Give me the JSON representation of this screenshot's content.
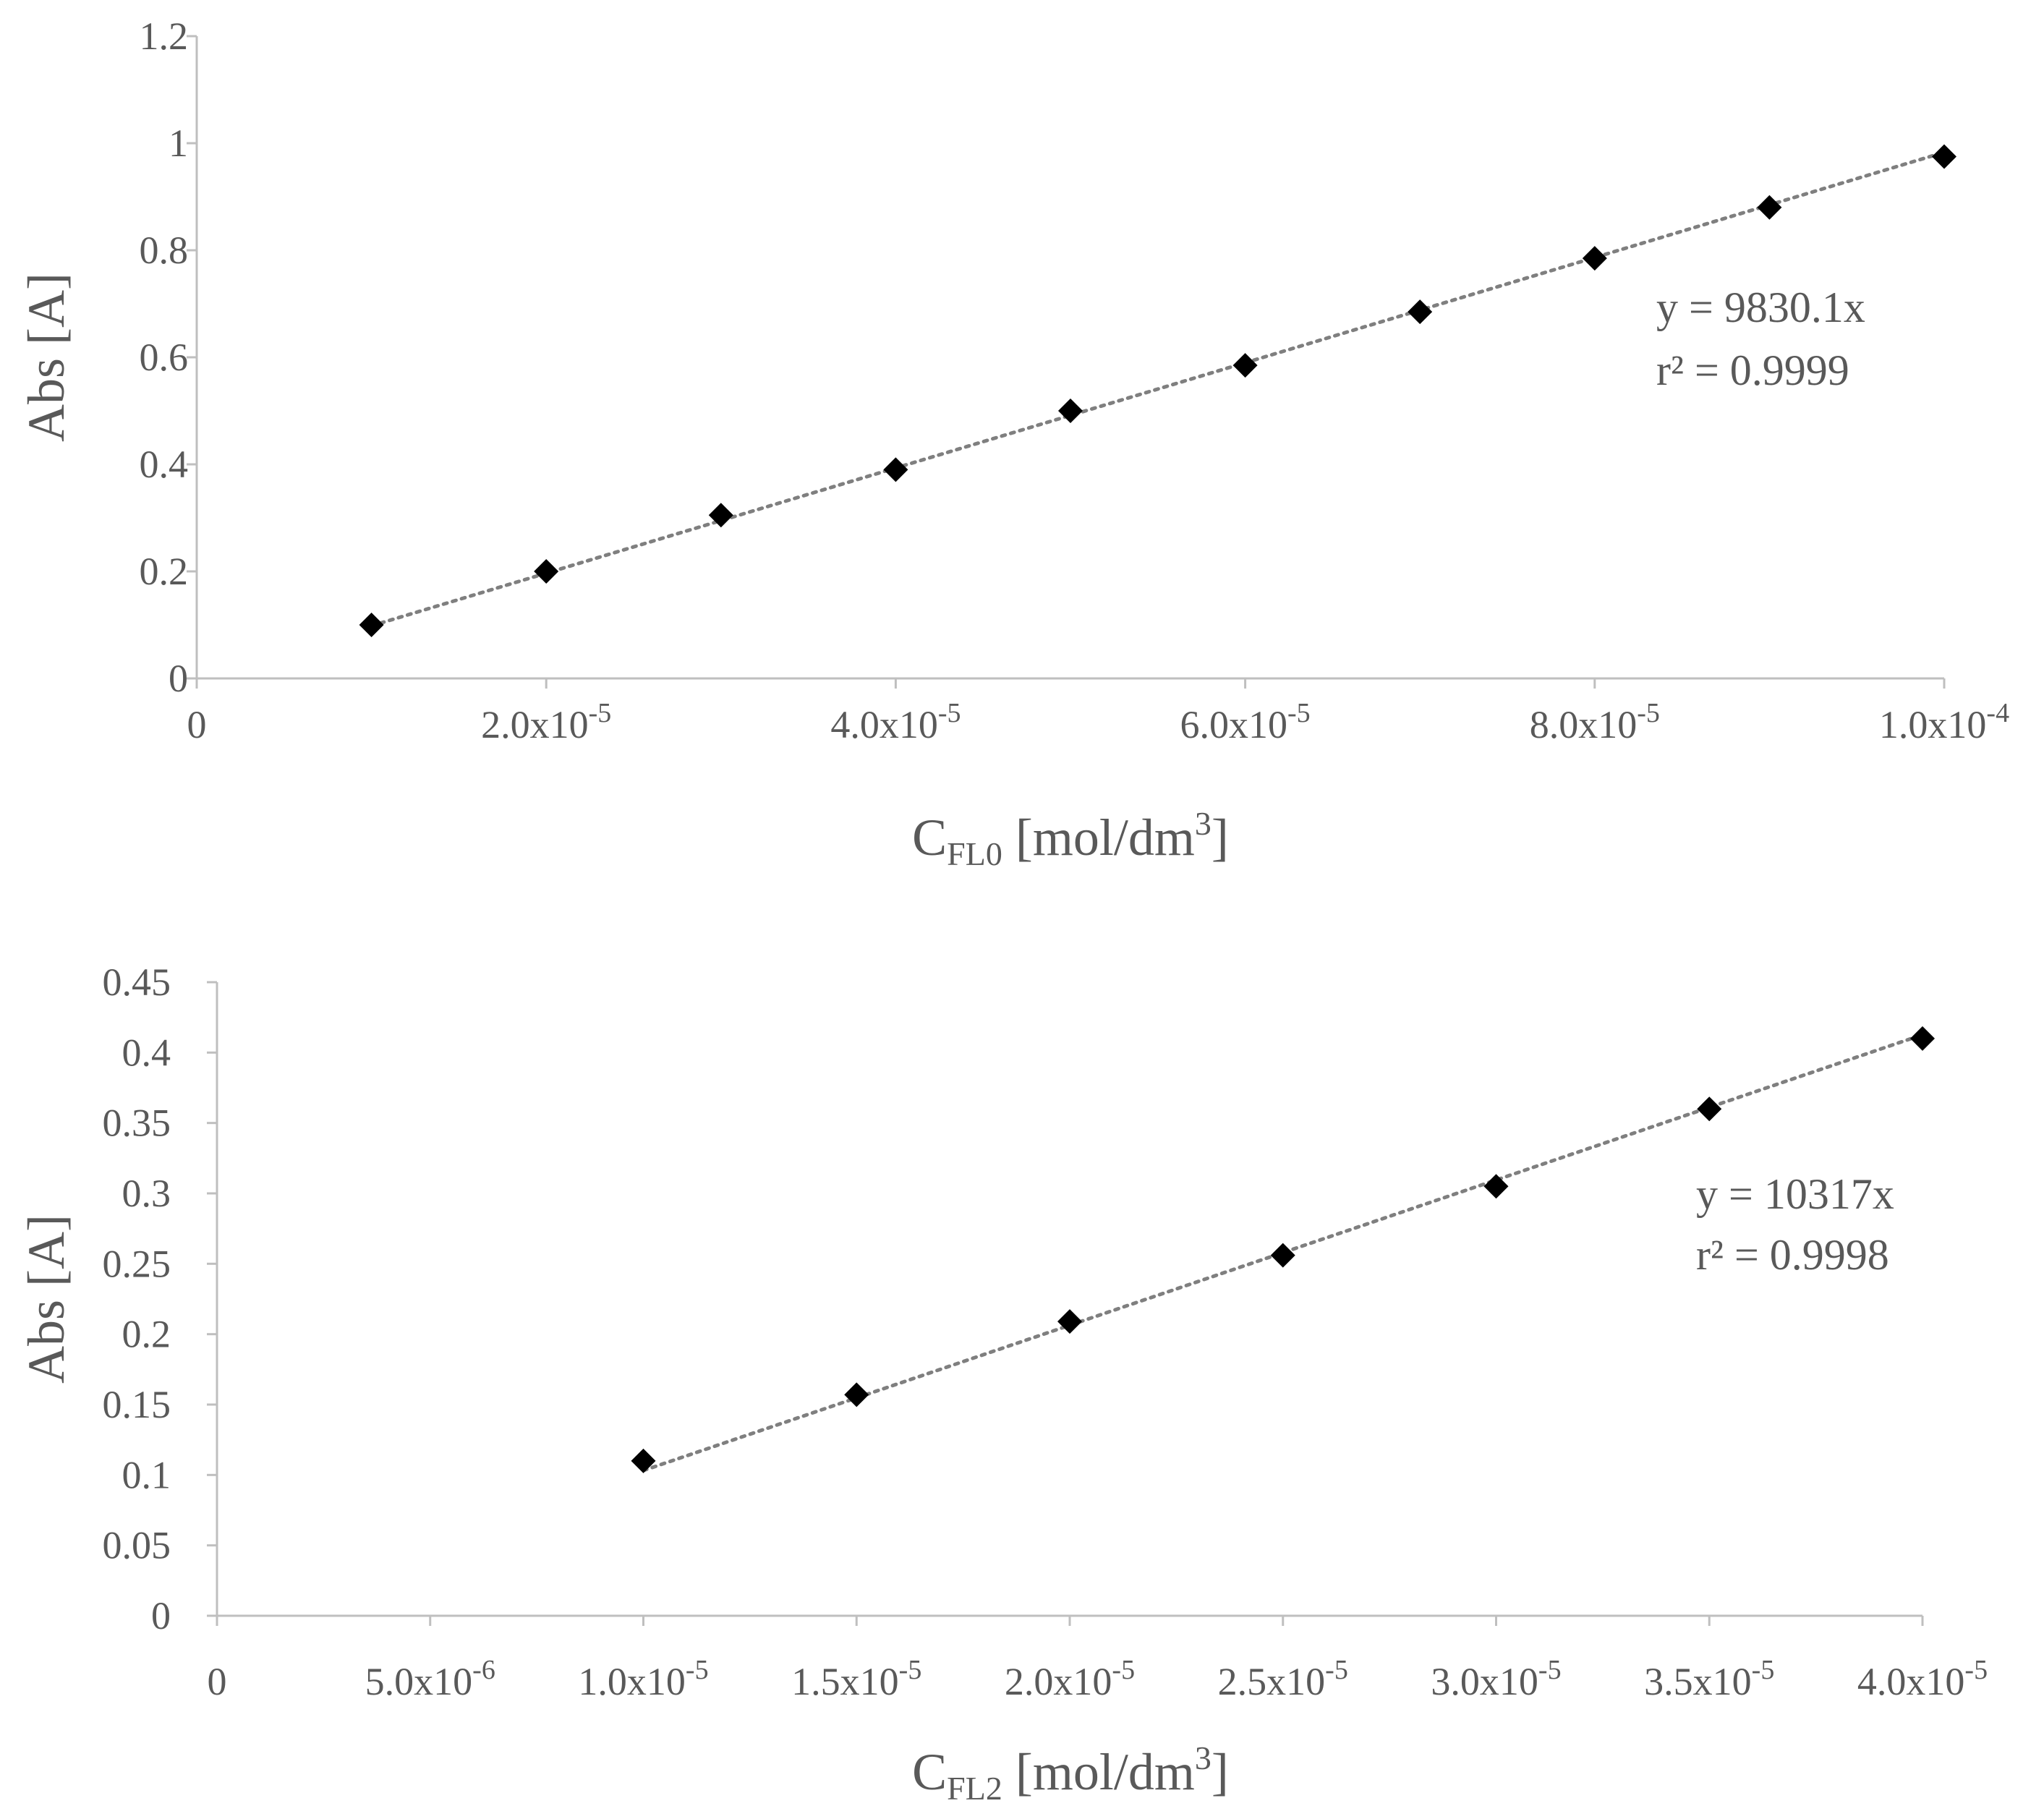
{
  "chart_data": [
    {
      "type": "scatter",
      "xlabel": {
        "main": "C",
        "sub": "FL0",
        "rest": " [mol/dm",
        "sup": "3",
        "end": "]"
      },
      "ylabel": "Abs [A]",
      "xlim": [
        0,
        0.0001
      ],
      "ylim": [
        0,
        1.2
      ],
      "y_ticks": [
        {
          "value": 0,
          "label": "0"
        },
        {
          "value": 0.2,
          "label": "0.2"
        },
        {
          "value": 0.4,
          "label": "0.4"
        },
        {
          "value": 0.6,
          "label": "0.6"
        },
        {
          "value": 0.8,
          "label": "0.8"
        },
        {
          "value": 1.0,
          "label": "1"
        },
        {
          "value": 1.2,
          "label": "1.2"
        }
      ],
      "x_ticks": [
        {
          "value": 0,
          "mant": "0",
          "exp": ""
        },
        {
          "value": 2e-05,
          "mant": "2.0x10",
          "exp": "-5"
        },
        {
          "value": 4e-05,
          "mant": "4.0x10",
          "exp": "-5"
        },
        {
          "value": 6e-05,
          "mant": "6.0x10",
          "exp": "-5"
        },
        {
          "value": 8e-05,
          "mant": "8.0x10",
          "exp": "-5"
        },
        {
          "value": 0.0001,
          "mant": "1.0x10",
          "exp": "-4"
        }
      ],
      "series": [
        {
          "x": [
            1e-05,
            2e-05,
            3e-05,
            4e-05,
            5e-05,
            6e-05,
            7e-05,
            8e-05,
            9e-05,
            0.0001
          ],
          "y": [
            0.1,
            0.2,
            0.305,
            0.39,
            0.5,
            0.585,
            0.685,
            0.785,
            0.88,
            0.975
          ]
        }
      ],
      "trendline": {
        "style": "dotted",
        "slope": 9830.1,
        "x_start": 1e-05,
        "x_end": 0.0001
      },
      "equation": "y = 9830.1x",
      "r_squared_label": "r² = 0.9999",
      "grid": false
    },
    {
      "type": "scatter",
      "xlabel": {
        "main": "C",
        "sub": "FL2",
        "rest": " [mol/dm",
        "sup": "3",
        "end": "]"
      },
      "ylabel": "Abs [A]",
      "xlim": [
        0,
        4e-05
      ],
      "ylim": [
        0,
        0.45
      ],
      "y_ticks": [
        {
          "value": 0,
          "label": "0"
        },
        {
          "value": 0.05,
          "label": "0.05"
        },
        {
          "value": 0.1,
          "label": "0.1"
        },
        {
          "value": 0.15,
          "label": "0.15"
        },
        {
          "value": 0.2,
          "label": "0.2"
        },
        {
          "value": 0.25,
          "label": "0.25"
        },
        {
          "value": 0.3,
          "label": "0.3"
        },
        {
          "value": 0.35,
          "label": "0.35"
        },
        {
          "value": 0.4,
          "label": "0.4"
        },
        {
          "value": 0.45,
          "label": "0.45"
        }
      ],
      "x_ticks": [
        {
          "value": 0,
          "mant": "0",
          "exp": ""
        },
        {
          "value": 5e-06,
          "mant": "5.0x10",
          "exp": "-6"
        },
        {
          "value": 1e-05,
          "mant": "1.0x10",
          "exp": "-5"
        },
        {
          "value": 1.5e-05,
          "mant": "1.5x10",
          "exp": "-5"
        },
        {
          "value": 2e-05,
          "mant": "2.0x10",
          "exp": "-5"
        },
        {
          "value": 2.5e-05,
          "mant": "2.5x10",
          "exp": "-5"
        },
        {
          "value": 3e-05,
          "mant": "3.0x10",
          "exp": "-5"
        },
        {
          "value": 3.5e-05,
          "mant": "3.5x10",
          "exp": "-5"
        },
        {
          "value": 4e-05,
          "mant": "4.0x10",
          "exp": "-5"
        }
      ],
      "series": [
        {
          "x": [
            1e-05,
            1.5e-05,
            2e-05,
            2.5e-05,
            3e-05,
            3.5e-05,
            4e-05
          ],
          "y": [
            0.11,
            0.157,
            0.209,
            0.256,
            0.305,
            0.36,
            0.41
          ]
        }
      ],
      "trendline": {
        "style": "dotted",
        "slope": 10317,
        "x_start": 1e-05,
        "x_end": 4e-05
      },
      "equation": "y = 10317x",
      "r_squared_label": "r² = 0.9998",
      "grid": false
    }
  ]
}
